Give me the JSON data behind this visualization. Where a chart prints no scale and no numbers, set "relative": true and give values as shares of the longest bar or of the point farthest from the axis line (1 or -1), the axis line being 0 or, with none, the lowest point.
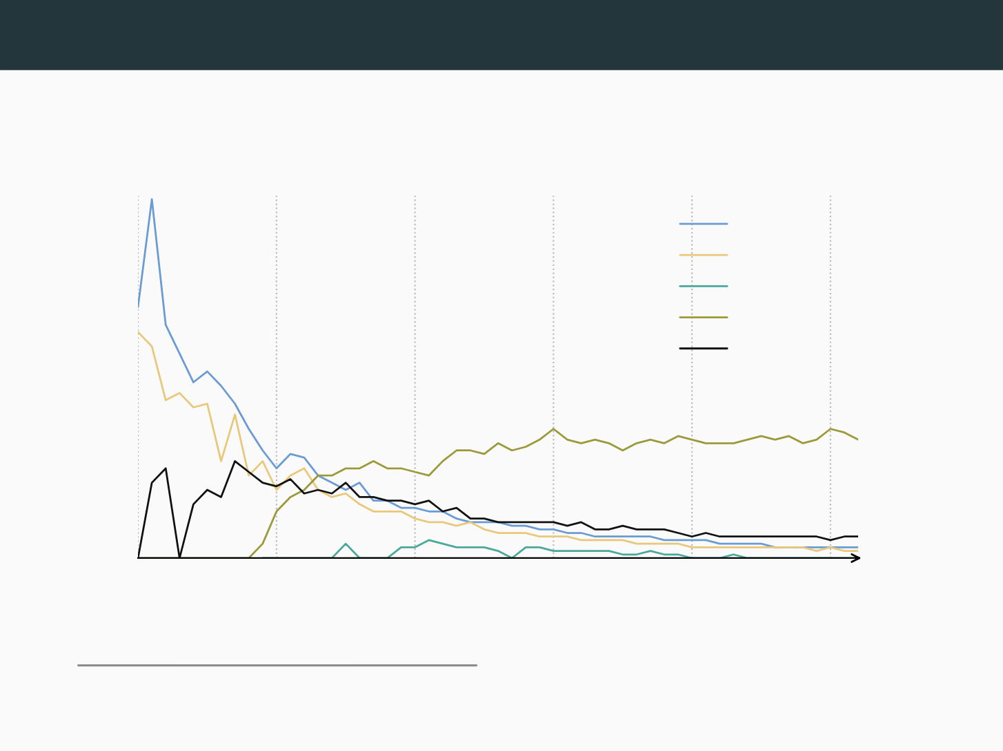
{
  "chart_data": {
    "type": "line",
    "relative": true,
    "grid": "x",
    "categories": [
      null,
      null,
      null,
      null,
      null,
      null,
      null,
      null,
      null,
      null,
      null,
      null,
      null,
      null,
      null,
      null,
      null,
      null,
      null,
      null,
      null,
      null,
      null,
      null,
      null,
      null,
      null,
      null,
      null,
      null,
      null,
      null,
      null,
      null,
      null,
      null,
      null,
      null,
      null,
      null,
      null,
      null,
      null,
      null,
      null,
      null,
      null,
      null,
      null,
      null,
      null,
      null,
      null
    ],
    "series": [
      {
        "color": "#6a9bd2",
        "values": [
          0.7,
          1.0,
          0.65,
          0.57,
          0.49,
          0.52,
          0.48,
          0.43,
          0.36,
          0.3,
          0.25,
          0.29,
          0.28,
          0.23,
          0.21,
          0.19,
          0.21,
          0.16,
          0.16,
          0.14,
          0.14,
          0.13,
          0.13,
          0.11,
          0.1,
          0.1,
          0.1,
          0.09,
          0.09,
          0.08,
          0.08,
          0.07,
          0.07,
          0.06,
          0.06,
          0.06,
          0.06,
          0.06,
          0.05,
          0.05,
          0.05,
          0.05,
          0.04,
          0.04,
          0.04,
          0.04,
          0.03,
          0.03,
          0.03,
          0.03,
          0.03,
          0.03,
          0.03
        ]
      },
      {
        "color": "#e8c87a",
        "values": [
          0.63,
          0.59,
          0.44,
          0.46,
          0.42,
          0.43,
          0.27,
          0.4,
          0.23,
          0.27,
          0.19,
          0.23,
          0.25,
          0.19,
          0.17,
          0.18,
          0.15,
          0.13,
          0.13,
          0.13,
          0.11,
          0.1,
          0.1,
          0.09,
          0.1,
          0.08,
          0.07,
          0.07,
          0.07,
          0.06,
          0.06,
          0.06,
          0.05,
          0.05,
          0.05,
          0.05,
          0.04,
          0.04,
          0.04,
          0.04,
          0.03,
          0.03,
          0.03,
          0.03,
          0.03,
          0.03,
          0.03,
          0.03,
          0.03,
          0.02,
          0.03,
          0.02,
          0.02
        ]
      },
      {
        "color": "#4aa89a",
        "values": [
          null,
          null,
          null,
          null,
          null,
          null,
          null,
          null,
          null,
          0,
          0,
          0,
          0,
          0,
          0,
          0.04,
          0,
          0,
          0,
          0.03,
          0.03,
          0.05,
          0.04,
          0.03,
          0.03,
          0.03,
          0.02,
          0,
          0.03,
          0.03,
          0.02,
          0.02,
          0.02,
          0.02,
          0.02,
          0.01,
          0.01,
          0.02,
          0.01,
          0.01,
          0,
          0,
          0,
          0.01,
          0,
          0,
          0,
          0,
          0,
          0,
          0,
          0,
          0
        ]
      },
      {
        "color": "#9a9a3a",
        "values": [
          0,
          0,
          0,
          0,
          0,
          0,
          0,
          0,
          0,
          0.04,
          0.13,
          0.17,
          0.19,
          0.23,
          0.23,
          0.25,
          0.25,
          0.27,
          0.25,
          0.25,
          0.24,
          0.23,
          0.27,
          0.3,
          0.3,
          0.29,
          0.32,
          0.3,
          0.31,
          0.33,
          0.36,
          0.33,
          0.32,
          0.33,
          0.32,
          0.3,
          0.32,
          0.33,
          0.32,
          0.34,
          0.33,
          0.32,
          0.32,
          0.32,
          0.33,
          0.34,
          0.33,
          0.34,
          0.32,
          0.33,
          0.36,
          0.35,
          0.33
        ]
      },
      {
        "color": "#111111",
        "values": [
          0,
          0.21,
          0.25,
          0,
          0.15,
          0.19,
          0.17,
          0.27,
          0.24,
          0.21,
          0.2,
          0.22,
          0.18,
          0.19,
          0.18,
          0.21,
          0.17,
          0.17,
          0.16,
          0.16,
          0.15,
          0.16,
          0.13,
          0.14,
          0.11,
          0.11,
          0.1,
          0.1,
          0.1,
          0.1,
          0.1,
          0.09,
          0.1,
          0.08,
          0.08,
          0.09,
          0.08,
          0.08,
          0.08,
          0.07,
          0.06,
          0.07,
          0.06,
          0.06,
          0.06,
          0.06,
          0.06,
          0.06,
          0.06,
          0.06,
          0.05,
          0.06,
          0.06
        ]
      }
    ]
  }
}
